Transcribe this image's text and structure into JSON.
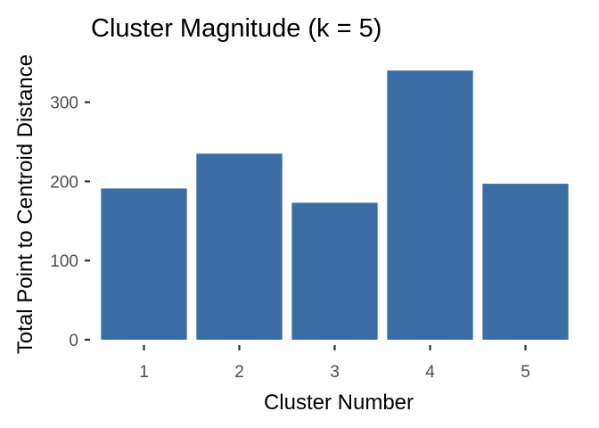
{
  "chart_data": {
    "type": "bar",
    "title": "Cluster Magnitude (k = 5)",
    "xlabel": "Cluster Number",
    "ylabel": "Total Point to Centroid Distance",
    "categories": [
      "1",
      "2",
      "3",
      "4",
      "5"
    ],
    "values": [
      191,
      235,
      173,
      340,
      197
    ],
    "ylim": [
      0,
      357
    ],
    "yticks": [
      0,
      100,
      200,
      300
    ],
    "grid": false,
    "legend": "none",
    "bar_color": "#3a6ea5",
    "tick_label_color": "#4d4d4d"
  }
}
